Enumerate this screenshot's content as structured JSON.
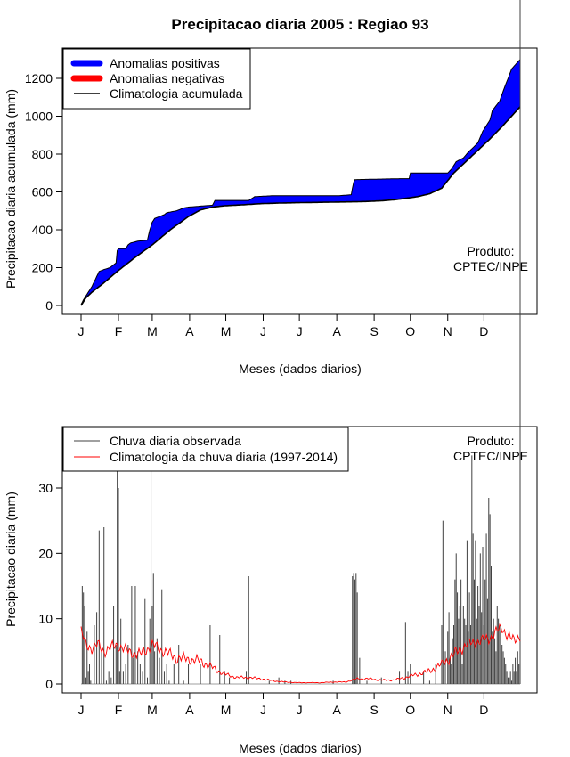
{
  "title": "Precipitacao diaria 2005 : Regiao 93",
  "chart_data": [
    {
      "type": "area",
      "ylabel": "Precipitacao diaria acumulada (mm)",
      "xlabel": "Meses (dados diarios)",
      "ylim": [
        0,
        1300
      ],
      "yticks": [
        0,
        200,
        400,
        600,
        800,
        1000,
        1200
      ],
      "month_labels": [
        "J",
        "F",
        "M",
        "A",
        "M",
        "J",
        "J",
        "A",
        "S",
        "O",
        "N",
        "D"
      ],
      "legend": {
        "positive": "Anomalias positivas",
        "negative": "Anomalias negativas",
        "clim": "Climatologia acumulada"
      },
      "colors": {
        "positive": "#0000ff",
        "negative": "#ff0000",
        "clim": "#000000"
      },
      "product_line1": "Produto:",
      "product_line2": "CPTEC/INPE",
      "climatology_cumulative": {
        "day": [
          1,
          5,
          10,
          20,
          31,
          45,
          60,
          75,
          90,
          100,
          110,
          120,
          135,
          150,
          165,
          180,
          200,
          210,
          220,
          230,
          240,
          250,
          260,
          270,
          280,
          290,
          300,
          305,
          310,
          320,
          330,
          340,
          350,
          365
        ],
        "mm": [
          0,
          40,
          70,
          120,
          180,
          250,
          320,
          400,
          470,
          505,
          520,
          527,
          532,
          538,
          541,
          543,
          545,
          546,
          547,
          548,
          550,
          553,
          558,
          566,
          575,
          590,
          620,
          660,
          700,
          760,
          820,
          880,
          945,
          1050
        ]
      },
      "observed_cumulative": {
        "day": [
          1,
          3,
          6,
          10,
          13,
          16,
          20,
          25,
          30,
          31,
          32,
          33,
          38,
          40,
          42,
          48,
          56,
          58,
          60,
          62,
          64,
          70,
          72,
          80,
          86,
          90,
          110,
          112,
          140,
          145,
          160,
          185,
          215,
          225,
          226,
          227,
          228,
          265,
          273,
          274,
          305,
          308,
          312,
          318,
          322,
          327,
          330,
          334,
          340,
          342,
          348,
          352,
          358,
          365
        ],
        "mm": [
          5,
          30,
          60,
          100,
          140,
          180,
          190,
          200,
          225,
          290,
          300,
          300,
          300,
          320,
          330,
          340,
          345,
          400,
          440,
          460,
          465,
          480,
          490,
          500,
          515,
          520,
          530,
          555,
          555,
          575,
          580,
          580,
          580,
          585,
          620,
          650,
          665,
          670,
          670,
          700,
          700,
          720,
          760,
          780,
          810,
          840,
          860,
          920,
          980,
          1030,
          1080,
          1150,
          1250,
          1300
        ]
      }
    },
    {
      "type": "bar",
      "ylabel": "Precipitacao diaria (mm)",
      "xlabel": "Meses (dados diarios)",
      "ylim": [
        0,
        39
      ],
      "yticks": [
        0,
        10,
        20,
        30
      ],
      "month_labels": [
        "J",
        "F",
        "M",
        "A",
        "M",
        "J",
        "J",
        "A",
        "S",
        "O",
        "N",
        "D"
      ],
      "legend": {
        "observed": "Chuva diaria observada",
        "clim": "Climatologia da chuva diaria (1997-2014)"
      },
      "colors": {
        "observed": "#404040",
        "clim": "#ff0000"
      },
      "product_line1": "Produto:",
      "product_line2": "CPTEC/INPE",
      "observed_daily": {
        "day": [
          2,
          3,
          4,
          5,
          6,
          7,
          8,
          9,
          12,
          14,
          16,
          18,
          20,
          22,
          24,
          26,
          28,
          30,
          31,
          32,
          33,
          34,
          36,
          38,
          40,
          43,
          44,
          46,
          48,
          50,
          52,
          54,
          56,
          58,
          59,
          60,
          61,
          62,
          64,
          66,
          68,
          70,
          72,
          74,
          78,
          82,
          86,
          90,
          100,
          108,
          116,
          120,
          124,
          138,
          140,
          157,
          165,
          170,
          175,
          180,
          210,
          226,
          227,
          228,
          229,
          230,
          232,
          238,
          250,
          265,
          270,
          272,
          274,
          285,
          290,
          295,
          300,
          301,
          303,
          305,
          306,
          307,
          308,
          309,
          310,
          311,
          312,
          313,
          314,
          315,
          316,
          317,
          318,
          319,
          320,
          321,
          322,
          323,
          324,
          325,
          326,
          327,
          328,
          329,
          330,
          331,
          332,
          333,
          334,
          335,
          336,
          337,
          338,
          339,
          340,
          341,
          342,
          343,
          344,
          345,
          346,
          347,
          348,
          349,
          350,
          351,
          352,
          353,
          354,
          355,
          356,
          357,
          358,
          359,
          360,
          361,
          362,
          363,
          364,
          365
        ],
        "mm": [
          15,
          14,
          12,
          1,
          8,
          2,
          3,
          0.5,
          9,
          11,
          23.5,
          5,
          24,
          0.5,
          2,
          1,
          12,
          6,
          33,
          30,
          2,
          10,
          2,
          3,
          6,
          15,
          4,
          15,
          5,
          3,
          2,
          13,
          1,
          10,
          34,
          12,
          17,
          5,
          7,
          4,
          14.5,
          2,
          3,
          0.5,
          3,
          6,
          0.5,
          3,
          3,
          9,
          7.5,
          2,
          1,
          2,
          16.5,
          0.5,
          1,
          0.5,
          0.5,
          0.5,
          0.5,
          16.5,
          17,
          16,
          17,
          14,
          4,
          0.5,
          1,
          2,
          9.5,
          2,
          3,
          2,
          0.5,
          3,
          9,
          25,
          5,
          8,
          11,
          4,
          3,
          7,
          9,
          16,
          20,
          14,
          10,
          12,
          16,
          3,
          12,
          10,
          9,
          22,
          8,
          14,
          9,
          35,
          23,
          16,
          22,
          10,
          15,
          12,
          20,
          11,
          21,
          9,
          16,
          23,
          13,
          28.5,
          26,
          18,
          8,
          10,
          7,
          5,
          12,
          10,
          9,
          8,
          6,
          5,
          4,
          3,
          2,
          1,
          1,
          2,
          0.5,
          3,
          2,
          4,
          2,
          5,
          3
        ]
      },
      "climatology_daily": {
        "day": [
          1,
          5,
          10,
          15,
          20,
          25,
          31,
          40,
          50,
          60,
          70,
          80,
          90,
          100,
          110,
          120,
          130,
          140,
          150,
          160,
          170,
          180,
          190,
          200,
          210,
          220,
          230,
          240,
          250,
          260,
          270,
          280,
          290,
          300,
          310,
          320,
          330,
          340,
          345,
          350,
          355,
          360,
          365
        ],
        "mm": [
          8,
          6,
          5.5,
          6,
          5,
          5.5,
          6,
          5,
          4.5,
          6,
          5,
          4,
          3.8,
          3.5,
          2.5,
          1.5,
          1,
          1,
          0.8,
          0.5,
          0.3,
          0.2,
          0.2,
          0.2,
          0.3,
          0.3,
          0.8,
          0.8,
          0.6,
          0.6,
          1,
          1.5,
          2,
          3,
          4.5,
          6,
          6.5,
          7,
          8,
          8.5,
          7.5,
          6.5,
          7.5
        ]
      }
    }
  ]
}
